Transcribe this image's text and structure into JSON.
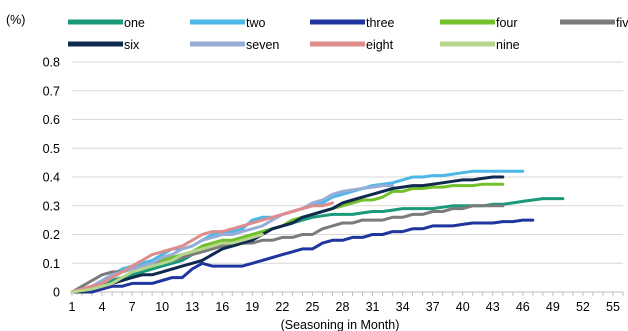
{
  "chart_data": {
    "type": "line",
    "ylabel": "(%)",
    "xlabel": "(Seasoning in Month)",
    "ylim": [
      0,
      0.8
    ],
    "yticks": [
      "0",
      "0.1",
      "0.2",
      "0.3",
      "0.4",
      "0.5",
      "0.6",
      "0.7",
      "0.8"
    ],
    "xlim": [
      1,
      56
    ],
    "xticks": [
      "1",
      "4",
      "7",
      "10",
      "13",
      "16",
      "19",
      "22",
      "25",
      "28",
      "31",
      "34",
      "37",
      "40",
      "43",
      "46",
      "49",
      "52",
      "55"
    ],
    "grid": "horizontal",
    "legend": "top",
    "series": [
      {
        "name": "one",
        "color": "#1a9a7a",
        "x": [
          1,
          2,
          3,
          4,
          5,
          6,
          7,
          8,
          9,
          10,
          11,
          12,
          13,
          14,
          15,
          16,
          17,
          18,
          19,
          20,
          21,
          22,
          23,
          24,
          25,
          26,
          27,
          28,
          29,
          30,
          31,
          32,
          33,
          34,
          35,
          36,
          37,
          38,
          39,
          40,
          41,
          42,
          43,
          44,
          45,
          46,
          47,
          48,
          49,
          50
        ],
        "y": [
          0,
          0.01,
          0.02,
          0.03,
          0.04,
          0.05,
          0.06,
          0.07,
          0.08,
          0.09,
          0.1,
          0.11,
          0.13,
          0.15,
          0.16,
          0.17,
          0.18,
          0.19,
          0.2,
          0.21,
          0.22,
          0.23,
          0.24,
          0.25,
          0.26,
          0.265,
          0.27,
          0.27,
          0.27,
          0.275,
          0.28,
          0.28,
          0.285,
          0.29,
          0.29,
          0.29,
          0.29,
          0.295,
          0.3,
          0.3,
          0.3,
          0.3,
          0.305,
          0.305,
          0.31,
          0.315,
          0.32,
          0.325,
          0.325,
          0.325
        ]
      },
      {
        "name": "two",
        "color": "#4db8e8",
        "x": [
          1,
          2,
          3,
          4,
          5,
          6,
          7,
          8,
          9,
          10,
          11,
          12,
          13,
          14,
          15,
          16,
          17,
          18,
          19,
          20,
          21,
          22,
          23,
          24,
          25,
          26,
          27,
          28,
          29,
          30,
          31,
          32,
          33,
          34,
          35,
          36,
          37,
          38,
          39,
          40,
          41,
          42,
          43,
          44,
          45,
          46
        ],
        "y": [
          0,
          0.01,
          0.02,
          0.04,
          0.06,
          0.08,
          0.09,
          0.1,
          0.11,
          0.13,
          0.15,
          0.15,
          0.16,
          0.18,
          0.2,
          0.21,
          0.21,
          0.22,
          0.25,
          0.26,
          0.26,
          0.27,
          0.28,
          0.29,
          0.3,
          0.31,
          0.33,
          0.34,
          0.35,
          0.36,
          0.37,
          0.375,
          0.38,
          0.39,
          0.4,
          0.4,
          0.405,
          0.405,
          0.41,
          0.415,
          0.42,
          0.42,
          0.42,
          0.42,
          0.42,
          0.42
        ]
      },
      {
        "name": "three",
        "color": "#1f35a0",
        "x": [
          1,
          2,
          3,
          4,
          5,
          6,
          7,
          8,
          9,
          10,
          11,
          12,
          13,
          14,
          15,
          16,
          17,
          18,
          19,
          20,
          21,
          22,
          23,
          24,
          25,
          26,
          27,
          28,
          29,
          30,
          31,
          32,
          33,
          34,
          35,
          36,
          37,
          38,
          39,
          40,
          41,
          42,
          43,
          44,
          45,
          46,
          47
        ],
        "y": [
          0,
          0,
          0,
          0.01,
          0.02,
          0.02,
          0.03,
          0.03,
          0.03,
          0.04,
          0.05,
          0.05,
          0.08,
          0.1,
          0.09,
          0.09,
          0.09,
          0.09,
          0.1,
          0.11,
          0.12,
          0.13,
          0.14,
          0.15,
          0.15,
          0.17,
          0.18,
          0.18,
          0.19,
          0.19,
          0.2,
          0.2,
          0.21,
          0.21,
          0.22,
          0.22,
          0.23,
          0.23,
          0.23,
          0.235,
          0.24,
          0.24,
          0.24,
          0.245,
          0.245,
          0.25,
          0.25
        ]
      },
      {
        "name": "four",
        "color": "#72c02c",
        "x": [
          1,
          2,
          3,
          4,
          5,
          6,
          7,
          8,
          9,
          10,
          11,
          12,
          13,
          14,
          15,
          16,
          17,
          18,
          19,
          20,
          21,
          22,
          23,
          24,
          25,
          26,
          27,
          28,
          29,
          30,
          31,
          32,
          33,
          34,
          35,
          36,
          37,
          38,
          39,
          40,
          41,
          42,
          43,
          44
        ],
        "y": [
          0,
          0.01,
          0.02,
          0.03,
          0.05,
          0.07,
          0.08,
          0.09,
          0.1,
          0.11,
          0.12,
          0.13,
          0.14,
          0.16,
          0.17,
          0.18,
          0.18,
          0.19,
          0.2,
          0.21,
          0.22,
          0.23,
          0.25,
          0.26,
          0.27,
          0.28,
          0.29,
          0.3,
          0.31,
          0.32,
          0.32,
          0.33,
          0.35,
          0.35,
          0.36,
          0.36,
          0.365,
          0.365,
          0.37,
          0.37,
          0.37,
          0.375,
          0.375,
          0.375
        ]
      },
      {
        "name": "five",
        "color": "#7b7b7b",
        "x": [
          1,
          2,
          3,
          4,
          5,
          6,
          7,
          8,
          9,
          10,
          11,
          12,
          13,
          14,
          15,
          16,
          17,
          18,
          19,
          20,
          21,
          22,
          23,
          24,
          25,
          26,
          27,
          28,
          29,
          30,
          31,
          32,
          33,
          34,
          35,
          36,
          37,
          38,
          39,
          40,
          41,
          42,
          43,
          44
        ],
        "y": [
          0,
          0.02,
          0.04,
          0.06,
          0.07,
          0.07,
          0.08,
          0.09,
          0.1,
          0.1,
          0.11,
          0.12,
          0.13,
          0.14,
          0.15,
          0.16,
          0.16,
          0.17,
          0.17,
          0.18,
          0.18,
          0.19,
          0.19,
          0.2,
          0.2,
          0.22,
          0.23,
          0.24,
          0.24,
          0.25,
          0.25,
          0.25,
          0.26,
          0.26,
          0.27,
          0.27,
          0.28,
          0.28,
          0.29,
          0.29,
          0.3,
          0.3,
          0.3,
          0.3
        ]
      },
      {
        "name": "six",
        "color": "#0f2a4e",
        "x": [
          1,
          2,
          3,
          4,
          5,
          6,
          7,
          8,
          9,
          10,
          11,
          12,
          13,
          14,
          15,
          16,
          17,
          18,
          19,
          20,
          21,
          22,
          23,
          24,
          25,
          26,
          27,
          28,
          29,
          30,
          31,
          32,
          33,
          34,
          35,
          36,
          37,
          38,
          39,
          40,
          41,
          42,
          43,
          44
        ],
        "y": [
          0,
          0,
          0.01,
          0.02,
          0.03,
          0.04,
          0.05,
          0.06,
          0.06,
          0.07,
          0.08,
          0.09,
          0.1,
          0.11,
          0.13,
          0.15,
          0.16,
          0.17,
          0.18,
          0.2,
          0.22,
          0.23,
          0.24,
          0.26,
          0.27,
          0.28,
          0.29,
          0.31,
          0.32,
          0.33,
          0.34,
          0.35,
          0.36,
          0.365,
          0.37,
          0.37,
          0.375,
          0.38,
          0.385,
          0.39,
          0.39,
          0.395,
          0.4,
          0.4
        ]
      },
      {
        "name": "seven",
        "color": "#98acd8",
        "x": [
          1,
          2,
          3,
          4,
          5,
          6,
          7,
          8,
          9,
          10,
          11,
          12,
          13,
          14,
          15,
          16,
          17,
          18,
          19,
          20,
          21,
          22,
          23,
          24,
          25,
          26,
          27,
          28,
          29,
          30,
          31,
          32,
          33
        ],
        "y": [
          0,
          0.01,
          0.02,
          0.04,
          0.06,
          0.07,
          0.08,
          0.09,
          0.1,
          0.12,
          0.13,
          0.15,
          0.16,
          0.18,
          0.19,
          0.2,
          0.2,
          0.21,
          0.22,
          0.23,
          0.25,
          0.27,
          0.28,
          0.29,
          0.31,
          0.32,
          0.34,
          0.35,
          0.355,
          0.36,
          0.365,
          0.37,
          0.37
        ]
      },
      {
        "name": "eight",
        "color": "#df8c8c",
        "x": [
          1,
          2,
          3,
          4,
          5,
          6,
          7,
          8,
          9,
          10,
          11,
          12,
          13,
          14,
          15,
          16,
          17,
          18,
          19,
          20,
          21,
          22,
          23,
          24,
          25,
          26,
          27
        ],
        "y": [
          0,
          0.01,
          0.02,
          0.03,
          0.05,
          0.07,
          0.09,
          0.11,
          0.13,
          0.14,
          0.15,
          0.16,
          0.18,
          0.2,
          0.21,
          0.21,
          0.22,
          0.23,
          0.24,
          0.25,
          0.26,
          0.27,
          0.28,
          0.29,
          0.3,
          0.3,
          0.31
        ]
      },
      {
        "name": "nine",
        "color": "#b5d68b",
        "x": [
          1,
          2,
          3,
          4,
          5,
          6,
          7,
          8,
          9,
          10,
          11,
          12,
          13,
          14,
          15,
          16,
          17,
          18,
          19,
          20
        ],
        "y": [
          0,
          0.005,
          0.01,
          0.02,
          0.03,
          0.05,
          0.07,
          0.08,
          0.09,
          0.1,
          0.11,
          0.13,
          0.14,
          0.15,
          0.16,
          0.17,
          0.17,
          0.18,
          0.19,
          0.2
        ]
      }
    ]
  }
}
